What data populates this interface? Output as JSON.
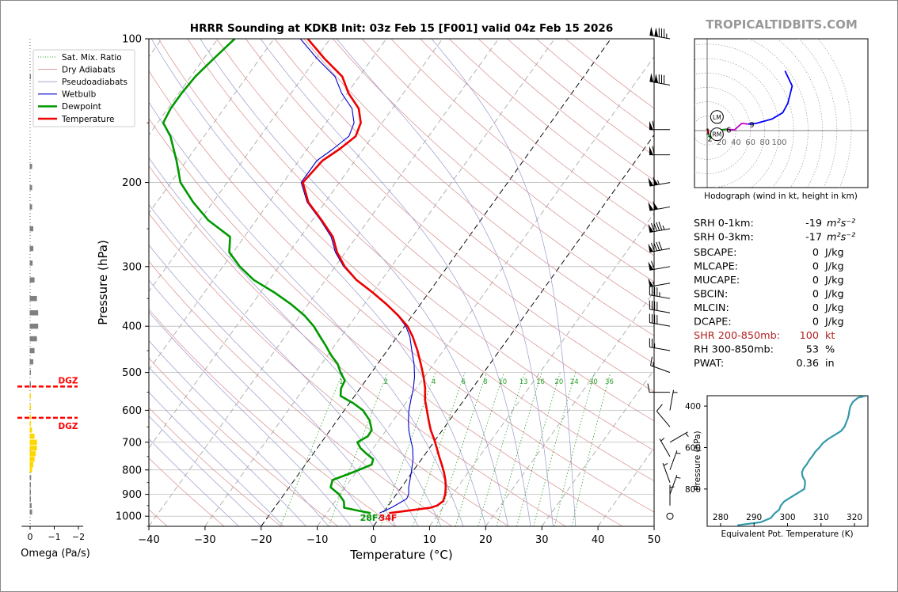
{
  "watermark": "TROPICALTIDBITS.COM",
  "chart_data": [
    {
      "id": "skewt",
      "type": "line",
      "title": "HRRR Sounding at KDKB Init: 03z Feb 15 [F001] valid 04z Feb 15 2026",
      "xlabel": "Temperature (°C)",
      "ylabel": "Pressure (hPa)",
      "xlim": [
        -40,
        50
      ],
      "ylim": [
        1050,
        100
      ],
      "skew_deg_per_decade": 61,
      "x_ticks": [
        "−40",
        "−30",
        "−20",
        "−10",
        "0",
        "10",
        "20",
        "30",
        "40",
        "50"
      ],
      "x_tick_values": [
        -40,
        -30,
        -20,
        -10,
        0,
        10,
        20,
        30,
        40,
        50
      ],
      "y_ticks": [
        "100",
        "200",
        "300",
        "400",
        "500",
        "600",
        "700",
        "800",
        "900",
        "1000"
      ],
      "y_tick_values": [
        100,
        200,
        300,
        400,
        500,
        600,
        700,
        800,
        900,
        1000
      ],
      "legend": [
        {
          "label": "Sat. Mix. Ratio",
          "color": "#2ca02c",
          "style": "dotted"
        },
        {
          "label": "Dry Adiabats",
          "color": "#d98c8c",
          "style": "solid"
        },
        {
          "label": "Pseudoadiabats",
          "color": "#9999cc",
          "style": "solid"
        },
        {
          "label": "Wetbulb",
          "color": "#0000cc",
          "style": "solid"
        },
        {
          "label": "Dewpoint",
          "color": "#009900",
          "style": "solid"
        },
        {
          "label": "Temperature",
          "color": "#ee0000",
          "style": "solid"
        }
      ],
      "mixing_ratio_labels": [
        "1",
        "2",
        "4",
        "6",
        "8",
        "10",
        "13",
        "16",
        "20",
        "24",
        "30",
        "36"
      ],
      "mixing_ratio_values": [
        1,
        2,
        4,
        6,
        8,
        10,
        13,
        16,
        20,
        24,
        30,
        36
      ],
      "surface_dewpoint_label": "28F",
      "surface_temperature_label": "34F",
      "series": [
        {
          "name": "Temperature",
          "color": "#ee0000",
          "p": [
            985,
            975,
            960,
            950,
            930,
            900,
            870,
            840,
            810,
            780,
            750,
            720,
            690,
            660,
            630,
            600,
            570,
            540,
            510,
            480,
            450,
            420,
            400,
            380,
            360,
            340,
            320,
            300,
            280,
            260,
            240,
            220,
            200,
            180,
            170,
            160,
            150,
            140,
            130,
            120,
            110,
            100
          ],
          "t": [
            1.1,
            3.8,
            7.8,
            8.7,
            9.2,
            8.7,
            7.9,
            6.9,
            5.7,
            4.3,
            2.8,
            1.3,
            -0.3,
            -2.1,
            -3.7,
            -5.3,
            -7.0,
            -8.4,
            -10.2,
            -12.3,
            -14.6,
            -17.3,
            -19.5,
            -22.5,
            -26.0,
            -30.0,
            -34.5,
            -38.3,
            -41.5,
            -44.2,
            -48.3,
            -53.0,
            -56.5,
            -55.8,
            -54.2,
            -53.0,
            -53.8,
            -56.0,
            -59.8,
            -63.0,
            -68.5,
            -74.0
          ]
        },
        {
          "name": "Wetbulb",
          "color": "#0000cc",
          "p": [
            985,
            960,
            940,
            920,
            900,
            870,
            840,
            800,
            760,
            720,
            690,
            660,
            630,
            600,
            570,
            540,
            510,
            480,
            450,
            420,
            400,
            380,
            360,
            340,
            320,
            300,
            280,
            260,
            240,
            220,
            200,
            180,
            170,
            160,
            150,
            140,
            130,
            120,
            110,
            100
          ],
          "t": [
            -0.6,
            0.8,
            1.6,
            2.4,
            2.2,
            1.3,
            0.6,
            -0.4,
            -1.5,
            -3.0,
            -4.5,
            -6.0,
            -7.3,
            -8.5,
            -9.5,
            -10.5,
            -11.8,
            -13.5,
            -15.6,
            -17.8,
            -19.8,
            -22.6,
            -26.0,
            -30.1,
            -34.6,
            -38.5,
            -41.8,
            -44.5,
            -48.5,
            -53.2,
            -56.8,
            -56.8,
            -55.4,
            -54.2,
            -55.0,
            -57.2,
            -61.0,
            -64.3,
            -69.8,
            -75.3
          ]
        },
        {
          "name": "Dewpoint",
          "color": "#009900",
          "p": [
            985,
            975,
            960,
            945,
            930,
            900,
            870,
            840,
            810,
            780,
            760,
            740,
            720,
            700,
            680,
            660,
            630,
            600,
            580,
            560,
            540,
            520,
            500,
            480,
            460,
            440,
            420,
            400,
            380,
            360,
            340,
            320,
            300,
            280,
            260,
            240,
            220,
            200,
            180,
            160,
            150,
            140,
            130,
            120,
            110,
            100
          ],
          "t": [
            -2.2,
            -4.4,
            -7.6,
            -8.0,
            -8.5,
            -10.2,
            -12.6,
            -13.2,
            -10.6,
            -8.2,
            -8.6,
            -10.5,
            -12.3,
            -13.6,
            -12.5,
            -12.6,
            -14.2,
            -16.7,
            -19.3,
            -22.5,
            -23.4,
            -23.7,
            -25.5,
            -27.1,
            -29.4,
            -31.5,
            -33.8,
            -36.2,
            -39.2,
            -43.0,
            -47.5,
            -52.8,
            -57.0,
            -60.7,
            -62.5,
            -68.5,
            -73.5,
            -78.3,
            -81.8,
            -86.0,
            -89.0,
            -89.5,
            -89.5,
            -89.2,
            -88.2,
            -87.0
          ]
        }
      ],
      "wind_barbs": [
        {
          "p": 100,
          "dir": 280,
          "speed": 135
        },
        {
          "p": 125,
          "dir": 280,
          "speed": 130
        },
        {
          "p": 155,
          "dir": 270,
          "speed": 60
        },
        {
          "p": 175,
          "dir": 270,
          "speed": 60
        },
        {
          "p": 200,
          "dir": 260,
          "speed": 105
        },
        {
          "p": 225,
          "dir": 260,
          "speed": 100
        },
        {
          "p": 250,
          "dir": 260,
          "speed": 95
        },
        {
          "p": 275,
          "dir": 260,
          "speed": 90
        },
        {
          "p": 300,
          "dir": 260,
          "speed": 60
        },
        {
          "p": 325,
          "dir": 260,
          "speed": 55
        },
        {
          "p": 350,
          "dir": 280,
          "speed": 45
        },
        {
          "p": 375,
          "dir": 280,
          "speed": 40
        },
        {
          "p": 400,
          "dir": 280,
          "speed": 40
        },
        {
          "p": 450,
          "dir": 280,
          "speed": 25
        },
        {
          "p": 500,
          "dir": 290,
          "speed": 15
        },
        {
          "p": 550,
          "dir": 270,
          "speed": 10
        },
        {
          "p": 600,
          "dir": 10,
          "speed": 5
        },
        {
          "p": 650,
          "dir": 320,
          "speed": 10
        },
        {
          "p": 700,
          "dir": 60,
          "speed": 5
        },
        {
          "p": 750,
          "dir": 330,
          "speed": 5
        },
        {
          "p": 800,
          "dir": 20,
          "speed": 5
        },
        {
          "p": 850,
          "dir": 340,
          "speed": 5
        },
        {
          "p": 900,
          "dir": 20,
          "speed": 5
        },
        {
          "p": 950,
          "dir": 0,
          "speed": 5
        },
        {
          "p": 1000,
          "dir": 0,
          "speed": 0
        }
      ]
    },
    {
      "id": "omega",
      "type": "bar",
      "xlabel": "Omega (Pa/s)",
      "xlim": [
        0.2,
        -2.6
      ],
      "x_ticks": [
        "0",
        "−1",
        "−2"
      ],
      "x_tick_values": [
        0,
        -1,
        -2
      ],
      "dgz_label": "DGZ",
      "dgz_p": [
        535,
        622
      ],
      "p": [
        120,
        185,
        205,
        225,
        250,
        275,
        295,
        320,
        350,
        375,
        400,
        425,
        450,
        475,
        500,
        530,
        560,
        590,
        620,
        640,
        660,
        680,
        700,
        720,
        740,
        760,
        780,
        800,
        830,
        860,
        890,
        920,
        950,
        980
      ],
      "omega": [
        -0.05,
        -0.1,
        -0.1,
        -0.1,
        -0.15,
        -0.15,
        -0.12,
        -0.2,
        -0.3,
        -0.35,
        -0.35,
        -0.3,
        -0.2,
        -0.15,
        -0.05,
        -0.02,
        0,
        0,
        -0.02,
        -0.05,
        -0.1,
        -0.2,
        -0.3,
        -0.3,
        -0.25,
        -0.2,
        -0.15,
        -0.1,
        -0.06,
        -0.04,
        0,
        -0.02,
        -0.08,
        -0.1
      ],
      "colors": {
        "gray": "#808080",
        "dgz": "#ffd700"
      }
    },
    {
      "id": "hodograph",
      "type": "line",
      "xlabel": "Hodograph (wind in kt, height in km)",
      "ring_labels": [
        "20",
        "40",
        "60",
        "80",
        "100"
      ],
      "ring_values": [
        20,
        40,
        60,
        80,
        100
      ],
      "height_labels": [
        "1",
        "2",
        "3",
        "6",
        "9"
      ],
      "storm_motion_labels": [
        "LM",
        "RM"
      ],
      "points": [
        {
          "km": 0.0,
          "u": 0,
          "v": 0
        },
        {
          "km": 0.5,
          "u": 2,
          "v": -3
        },
        {
          "km": 1.0,
          "u": 1,
          "v": 1
        },
        {
          "km": 1.5,
          "u": 2,
          "v": -5
        },
        {
          "km": 2.0,
          "u": 4,
          "v": -10
        },
        {
          "km": 2.5,
          "u": 9,
          "v": -6
        },
        {
          "km": 3.0,
          "u": 15,
          "v": -3
        },
        {
          "km": 3.5,
          "u": 18,
          "v": 1
        },
        {
          "km": 4.5,
          "u": 27,
          "v": 2
        },
        {
          "km": 6.0,
          "u": 38,
          "v": 1
        },
        {
          "km": 7.0,
          "u": 48,
          "v": 10
        },
        {
          "km": 8.0,
          "u": 57,
          "v": 9
        },
        {
          "km": 9.0,
          "u": 68,
          "v": 10
        },
        {
          "km": 10.0,
          "u": 90,
          "v": 16
        },
        {
          "km": 11.0,
          "u": 105,
          "v": 25
        },
        {
          "km": 12.0,
          "u": 112,
          "v": 38
        },
        {
          "km": 13.0,
          "u": 118,
          "v": 62
        },
        {
          "km": 14.0,
          "u": 108,
          "v": 83
        }
      ],
      "height_label_points": [
        {
          "label": "1",
          "u": 1,
          "v": -1
        },
        {
          "label": "2",
          "u": 4,
          "v": -11
        },
        {
          "label": "3",
          "u": 7,
          "v": -5
        },
        {
          "label": "6",
          "u": 30,
          "v": 1
        },
        {
          "label": "9",
          "u": 62,
          "v": 8
        }
      ],
      "lm": {
        "u": 7,
        "v": 9
      },
      "rm": {
        "u": 7,
        "v": -15
      },
      "colors": [
        "#ff0000",
        "#009900",
        "#cc00cc",
        "#0000ff"
      ]
    },
    {
      "id": "thetae",
      "type": "line",
      "xlabel": "Equivalent Pot. Temperature (K)",
      "ylabel": "Pressure (hPa)",
      "xlim": [
        276,
        324
      ],
      "ylim": [
        980,
        350
      ],
      "x_ticks": [
        "280",
        "290",
        "300",
        "310",
        "320"
      ],
      "x_tick_values": [
        280,
        290,
        300,
        310,
        320
      ],
      "y_ticks": [
        "400",
        "600",
        "800"
      ],
      "y_tick_values": [
        400,
        600,
        800
      ],
      "color": "#3399aa",
      "p": [
        975,
        960,
        940,
        920,
        900,
        880,
        860,
        840,
        820,
        800,
        780,
        760,
        740,
        720,
        700,
        680,
        660,
        640,
        620,
        600,
        580,
        560,
        540,
        520,
        500,
        480,
        460,
        440,
        420,
        400,
        380,
        360,
        350
      ],
      "theta_e": [
        285,
        292,
        295,
        296,
        297.5,
        298,
        299,
        301,
        303,
        305,
        305.2,
        305.2,
        304.5,
        304.3,
        304.8,
        305.8,
        306.5,
        307.5,
        308.3,
        309.5,
        310.5,
        312,
        314,
        316,
        317,
        317.5,
        318,
        318.3,
        318.5,
        318.8,
        319.5,
        321,
        323.5
      ]
    }
  ],
  "stats": [
    {
      "label": "SRH 0-1km:",
      "value": "-19",
      "unit": "m²s⁻²",
      "color": "#000000"
    },
    {
      "label": "SRH 0-3km:",
      "value": "-17",
      "unit": "m²s⁻²",
      "color": "#000000"
    },
    {
      "label": "SBCAPE:",
      "value": "0",
      "unit": "J/kg",
      "color": "#000000"
    },
    {
      "label": "MLCAPE:",
      "value": "0",
      "unit": "J/kg",
      "color": "#000000"
    },
    {
      "label": "MUCAPE:",
      "value": "0",
      "unit": "J/kg",
      "color": "#000000"
    },
    {
      "label": "SBCIN:",
      "value": "0",
      "unit": "J/kg",
      "color": "#000000"
    },
    {
      "label": "MLCIN:",
      "value": "0",
      "unit": "J/kg",
      "color": "#000000"
    },
    {
      "label": "DCAPE:",
      "value": "0",
      "unit": "J/kg",
      "color": "#000000"
    },
    {
      "label": "SHR 200-850mb:",
      "value": "100",
      "unit": "kt",
      "color": "#b22222"
    },
    {
      "label": "RH 300-850mb:",
      "value": "53",
      "unit": "%",
      "color": "#000000"
    },
    {
      "label": "PWAT:",
      "value": "0.36",
      "unit": "in",
      "color": "#000000"
    }
  ]
}
